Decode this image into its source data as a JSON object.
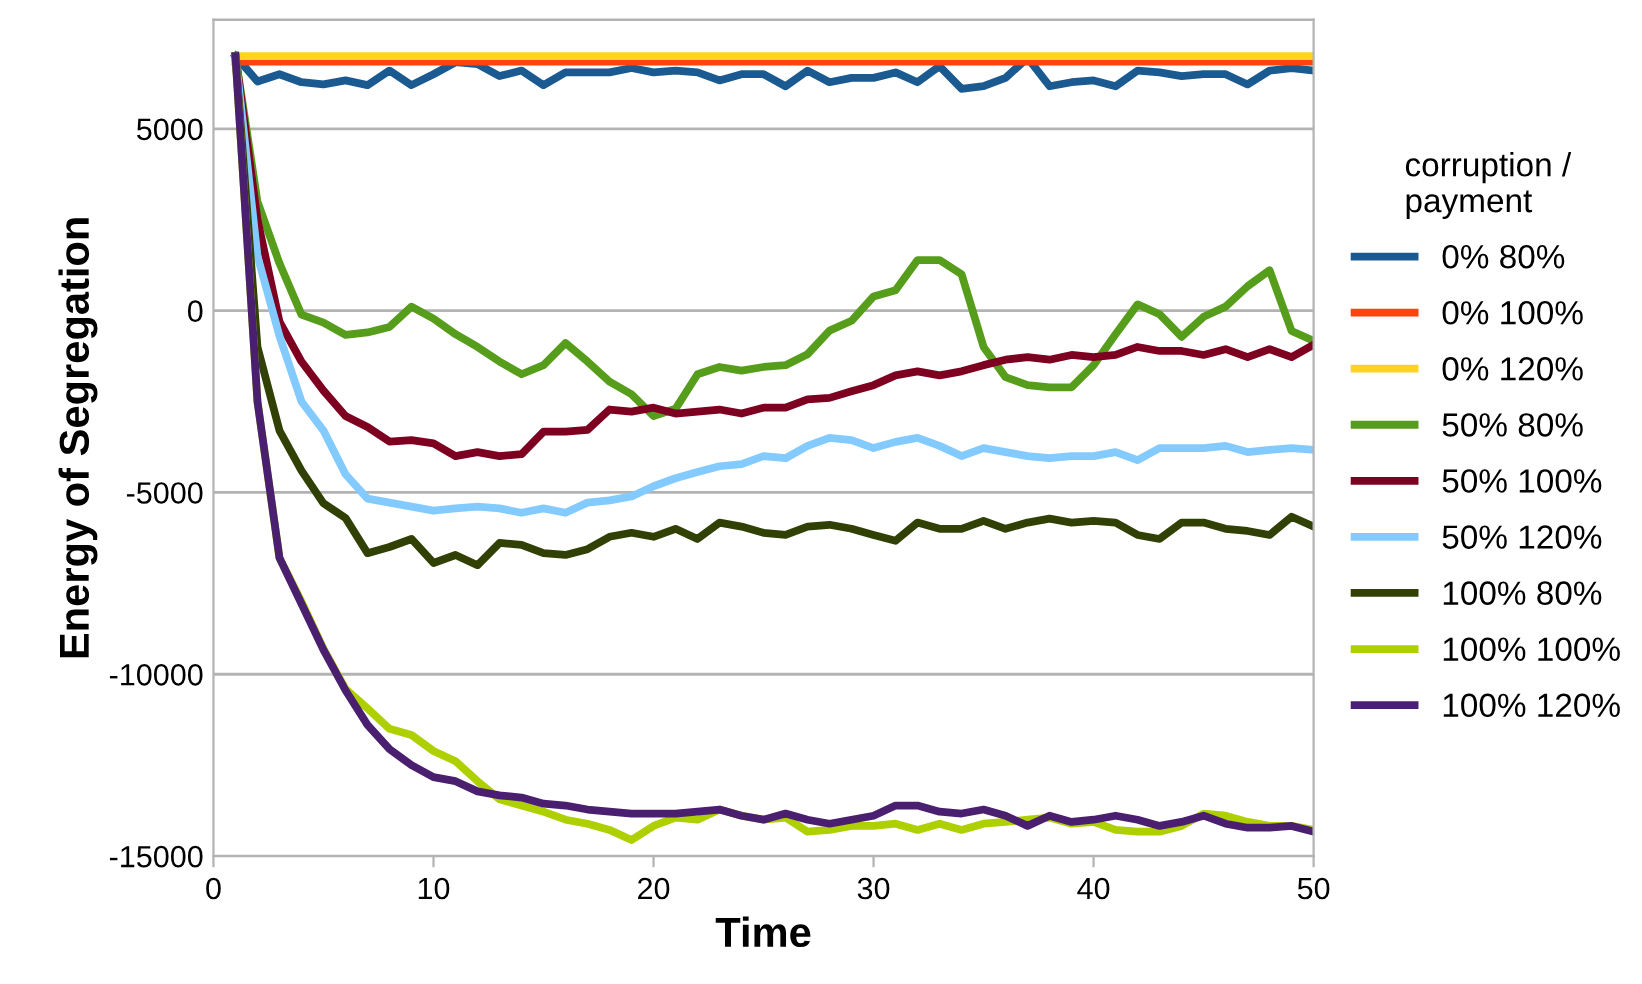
{
  "chart_data": {
    "type": "line",
    "xlabel": "Time",
    "ylabel": "Energy of Segregation",
    "legend_title": "corruption /\npayment",
    "legend": "right",
    "grid": "y",
    "line_style": "solid",
    "xlim": [
      0,
      50
    ],
    "xticks": [
      0,
      10,
      20,
      30,
      40,
      50
    ],
    "ylim": [
      -15000,
      8000
    ],
    "yticks": [
      -15000,
      -10000,
      -5000,
      0,
      5000,
      {
        "value": 8000,
        "label": null
      }
    ],
    "x": [
      1,
      2,
      3,
      4,
      5,
      6,
      7,
      8,
      9,
      10,
      11,
      12,
      13,
      14,
      15,
      16,
      17,
      18,
      19,
      20,
      21,
      22,
      23,
      24,
      25,
      26,
      27,
      28,
      29,
      30,
      31,
      32,
      33,
      34,
      35,
      36,
      37,
      38,
      39,
      40,
      41,
      42,
      43,
      44,
      45,
      46,
      47,
      48,
      49,
      50
    ],
    "series": [
      {
        "name": "0% 80%",
        "color": "#1b5a91",
        "values": [
          7000,
          6300,
          6500,
          6280,
          6220,
          6330,
          6200,
          6600,
          6200,
          6500,
          6830,
          6780,
          6450,
          6600,
          6200,
          6550,
          6550,
          6550,
          6670,
          6550,
          6600,
          6550,
          6330,
          6500,
          6500,
          6170,
          6600,
          6280,
          6400,
          6400,
          6550,
          6280,
          6720,
          6100,
          6170,
          6400,
          6950,
          6170,
          6280,
          6330,
          6170,
          6600,
          6550,
          6450,
          6500,
          6500,
          6220,
          6600,
          6670,
          6600
        ]
      },
      {
        "name": "0% 100%",
        "color": "#ff420e",
        "values": [
          6850,
          6850,
          6850,
          6850,
          6850,
          6850,
          6850,
          6850,
          6850,
          6850,
          6850,
          6850,
          6850,
          6850,
          6850,
          6850,
          6850,
          6850,
          6850,
          6850,
          6850,
          6850,
          6850,
          6850,
          6850,
          6850,
          6850,
          6850,
          6850,
          6850,
          6850,
          6850,
          6850,
          6850,
          6850,
          6850,
          6850,
          6850,
          6850,
          6850,
          6850,
          6850,
          6850,
          6850,
          6850,
          6850,
          6850,
          6850,
          6850,
          6850
        ]
      },
      {
        "name": "0% 120%",
        "color": "#ffd320",
        "values": [
          7000,
          7000,
          7000,
          7000,
          7000,
          7000,
          7000,
          7000,
          7000,
          7000,
          7000,
          7000,
          7000,
          7000,
          7000,
          7000,
          7000,
          7000,
          7000,
          7000,
          7000,
          7000,
          7000,
          7000,
          7000,
          7000,
          7000,
          7000,
          7000,
          7000,
          7000,
          7000,
          7000,
          7000,
          7000,
          7000,
          7000,
          7000,
          7000,
          7000,
          7000,
          7000,
          7000,
          7000,
          7000,
          7000,
          7000,
          7000,
          7000,
          7000
        ]
      },
      {
        "name": "50% 80%",
        "color": "#579d1c",
        "values": [
          7000,
          3000,
          1300,
          -110,
          -330,
          -670,
          -600,
          -450,
          110,
          -220,
          -650,
          -1000,
          -1400,
          -1750,
          -1500,
          -890,
          -1400,
          -1950,
          -2300,
          -2900,
          -2700,
          -1750,
          -1550,
          -1650,
          -1550,
          -1500,
          -1200,
          -550,
          -280,
          390,
          560,
          1390,
          1390,
          1000,
          -1000,
          -1830,
          -2050,
          -2110,
          -2110,
          -1500,
          -650,
          170,
          -100,
          -720,
          -170,
          110,
          670,
          1110,
          -560,
          -830
        ]
      },
      {
        "name": "50% 100%",
        "color": "#7e0021",
        "values": [
          7000,
          2500,
          -300,
          -1400,
          -2200,
          -2900,
          -3200,
          -3600,
          -3560,
          -3650,
          -4000,
          -3890,
          -4000,
          -3950,
          -3330,
          -3330,
          -3280,
          -2720,
          -2780,
          -2670,
          -2830,
          -2780,
          -2720,
          -2830,
          -2670,
          -2670,
          -2440,
          -2400,
          -2220,
          -2050,
          -1780,
          -1670,
          -1780,
          -1670,
          -1500,
          -1350,
          -1280,
          -1350,
          -1220,
          -1280,
          -1220,
          -1000,
          -1110,
          -1110,
          -1220,
          -1060,
          -1280,
          -1060,
          -1280,
          -940
        ]
      },
      {
        "name": "50% 120%",
        "color": "#83caff",
        "values": [
          7000,
          1500,
          -700,
          -2500,
          -3300,
          -4500,
          -5170,
          -5280,
          -5390,
          -5500,
          -5440,
          -5390,
          -5440,
          -5560,
          -5440,
          -5560,
          -5280,
          -5220,
          -5110,
          -4830,
          -4610,
          -4440,
          -4280,
          -4220,
          -4000,
          -4060,
          -3720,
          -3500,
          -3560,
          -3780,
          -3610,
          -3500,
          -3720,
          -4000,
          -3780,
          -3890,
          -4000,
          -4060,
          -4000,
          -4000,
          -3890,
          -4110,
          -3780,
          -3780,
          -3780,
          -3720,
          -3890,
          -3830,
          -3780,
          -3830
        ]
      },
      {
        "name": "100% 80%",
        "color": "#314004",
        "values": [
          7000,
          -1000,
          -3300,
          -4400,
          -5300,
          -5700,
          -6670,
          -6500,
          -6280,
          -6940,
          -6720,
          -7000,
          -6390,
          -6440,
          -6670,
          -6720,
          -6560,
          -6220,
          -6110,
          -6220,
          -6000,
          -6280,
          -5830,
          -5940,
          -6110,
          -6170,
          -5940,
          -5890,
          -6000,
          -6170,
          -6330,
          -5830,
          -6000,
          -6000,
          -5780,
          -6000,
          -5830,
          -5720,
          -5830,
          -5780,
          -5830,
          -6170,
          -6280,
          -5830,
          -5830,
          -6000,
          -6060,
          -6170,
          -5670,
          -5940
        ]
      },
      {
        "name": "100% 100%",
        "color": "#aecf00",
        "values": [
          7000,
          -2500,
          -6800,
          -8000,
          -9300,
          -10400,
          -10940,
          -11500,
          -11670,
          -12110,
          -12390,
          -12940,
          -13440,
          -13610,
          -13780,
          -14000,
          -14110,
          -14280,
          -14560,
          -14170,
          -13940,
          -14000,
          -13720,
          -13890,
          -14000,
          -13940,
          -14330,
          -14280,
          -14170,
          -14170,
          -14110,
          -14280,
          -14110,
          -14280,
          -14110,
          -14060,
          -14000,
          -13940,
          -14110,
          -14060,
          -14280,
          -14330,
          -14330,
          -14170,
          -13830,
          -13890,
          -14060,
          -14170,
          -14170,
          -14280
        ]
      },
      {
        "name": "100% 120%",
        "color": "#4b1f6f",
        "values": [
          7000,
          -2500,
          -6800,
          -8060,
          -9330,
          -10440,
          -11390,
          -12060,
          -12500,
          -12830,
          -12940,
          -13220,
          -13330,
          -13390,
          -13560,
          -13610,
          -13720,
          -13780,
          -13830,
          -13830,
          -13830,
          -13780,
          -13720,
          -13890,
          -14000,
          -13830,
          -14000,
          -14110,
          -14000,
          -13890,
          -13610,
          -13610,
          -13780,
          -13830,
          -13720,
          -13890,
          -14170,
          -13890,
          -14060,
          -14000,
          -13890,
          -14000,
          -14170,
          -14060,
          -13890,
          -14110,
          -14220,
          -14220,
          -14170,
          -14330
        ]
      }
    ]
  }
}
